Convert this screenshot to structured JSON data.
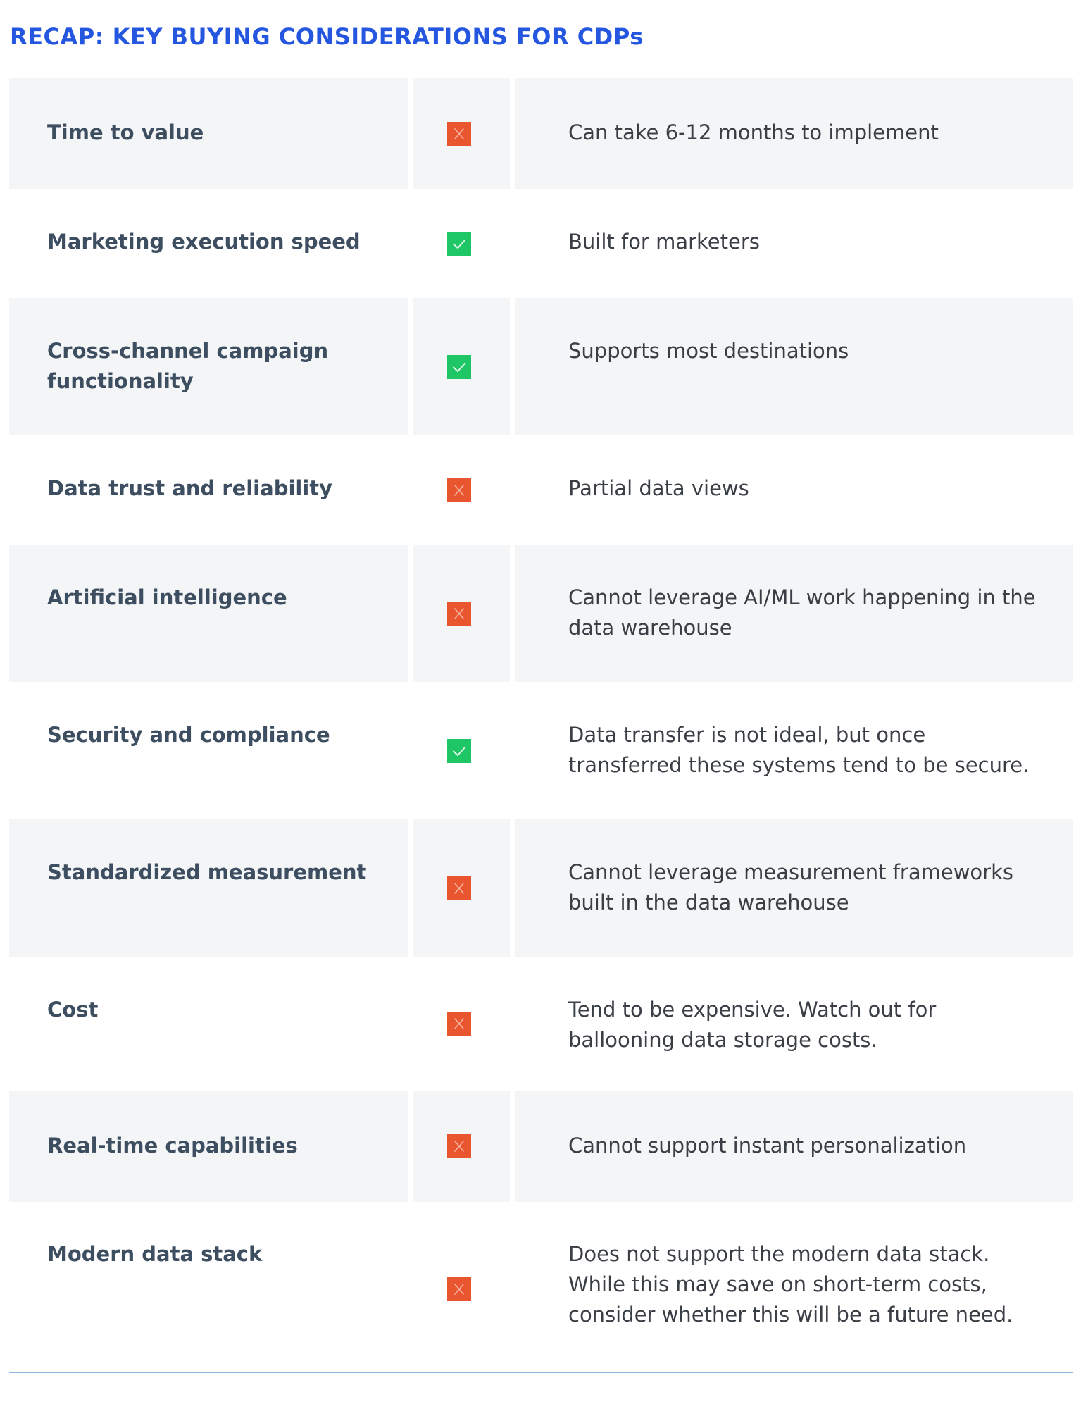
{
  "title": "RECAP: KEY BUYING CONSIDERATIONS FOR CDPs",
  "colors": {
    "heading": "#2456e0",
    "pass": "#1fc665",
    "fail": "#e9552e",
    "shaded_row": "#f4f5f7",
    "divider": "#8fb4e0"
  },
  "rows": [
    {
      "label": "Time to value",
      "status": "fail",
      "icon": "x-mark-icon",
      "description": "Can take 6-12 months to implement"
    },
    {
      "label": "Marketing execution speed",
      "status": "pass",
      "icon": "check-mark-icon",
      "description": "Built for marketers"
    },
    {
      "label": "Cross-channel campaign functionality",
      "status": "pass",
      "icon": "check-mark-icon",
      "description": "Supports most destinations"
    },
    {
      "label": "Data trust and reliability",
      "status": "fail",
      "icon": "x-mark-icon",
      "description": "Partial data views"
    },
    {
      "label": "Artificial intelligence",
      "status": "fail",
      "icon": "x-mark-icon",
      "description": "Cannot leverage AI/ML work happening in the data warehouse"
    },
    {
      "label": "Security and compliance",
      "status": "pass",
      "icon": "check-mark-icon",
      "description": "Data transfer is not ideal, but once transferred these systems tend to be secure."
    },
    {
      "label": "Standardized measurement",
      "status": "fail",
      "icon": "x-mark-icon",
      "description": "Cannot leverage measurement frameworks built in the data warehouse"
    },
    {
      "label": "Cost",
      "status": "fail",
      "icon": "x-mark-icon",
      "description": "Tend to be expensive. Watch out for ballooning data storage costs."
    },
    {
      "label": "Real-time capabilities",
      "status": "fail",
      "icon": "x-mark-icon",
      "description": "Cannot support instant personalization"
    },
    {
      "label": "Modern data stack",
      "status": "fail",
      "icon": "x-mark-icon",
      "description": "Does not support the modern data stack. While this may save on short-term costs, consider whether this will be a future need."
    }
  ]
}
